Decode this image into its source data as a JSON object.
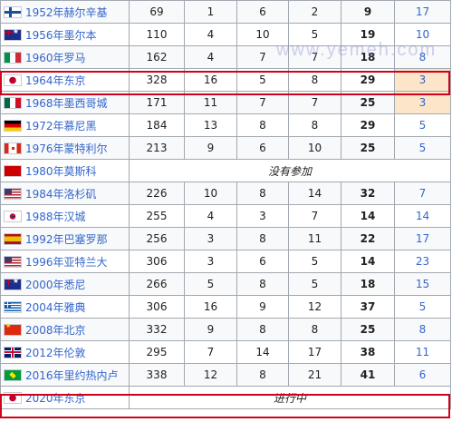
{
  "watermark": "www.yemeh.com",
  "rows": [
    {
      "flag": "fi-flag-icon",
      "name": "1952年赫尔辛基",
      "total_athletes": "69",
      "gold": "1",
      "silver": "6",
      "bronze": "2",
      "total": "9",
      "rank": "17"
    },
    {
      "flag": "au-flag-icon",
      "name": "1956年墨尔本",
      "total_athletes": "110",
      "gold": "4",
      "silver": "10",
      "bronze": "5",
      "total": "19",
      "rank": "10"
    },
    {
      "flag": "it-flag-icon",
      "name": "1960年罗马",
      "total_athletes": "162",
      "gold": "4",
      "silver": "7",
      "bronze": "7",
      "total": "18",
      "rank": "8"
    },
    {
      "flag": "jp-flag-icon",
      "name": "1964年东京",
      "total_athletes": "328",
      "gold": "16",
      "silver": "5",
      "bronze": "8",
      "total": "29",
      "rank": "3"
    },
    {
      "flag": "mx-flag-icon",
      "name": "1968年墨西哥城",
      "total_athletes": "171",
      "gold": "11",
      "silver": "7",
      "bronze": "7",
      "total": "25",
      "rank": "3"
    },
    {
      "flag": "de-flag-icon",
      "name": "1972年慕尼黑",
      "total_athletes": "184",
      "gold": "13",
      "silver": "8",
      "bronze": "8",
      "total": "29",
      "rank": "5"
    },
    {
      "flag": "ca-flag-icon",
      "name": "1976年蒙特利尔",
      "total_athletes": "213",
      "gold": "9",
      "silver": "6",
      "bronze": "10",
      "total": "25",
      "rank": "5"
    },
    {
      "flag": "su-flag-icon",
      "name": "1980年莫斯科",
      "note": "没有参加"
    },
    {
      "flag": "us-flag-icon",
      "name": "1984年洛杉矶",
      "total_athletes": "226",
      "gold": "10",
      "silver": "8",
      "bronze": "14",
      "total": "32",
      "rank": "7"
    },
    {
      "flag": "kr-flag-icon",
      "name": "1988年汉城",
      "total_athletes": "255",
      "gold": "4",
      "silver": "3",
      "bronze": "7",
      "total": "14",
      "rank": "14"
    },
    {
      "flag": "es-flag-icon",
      "name": "1992年巴塞罗那",
      "total_athletes": "256",
      "gold": "3",
      "silver": "8",
      "bronze": "11",
      "total": "22",
      "rank": "17"
    },
    {
      "flag": "us-flag-icon",
      "name": "1996年亚特兰大",
      "total_athletes": "306",
      "gold": "3",
      "silver": "6",
      "bronze": "5",
      "total": "14",
      "rank": "23"
    },
    {
      "flag": "au-flag-icon",
      "name": "2000年悉尼",
      "total_athletes": "266",
      "gold": "5",
      "silver": "8",
      "bronze": "5",
      "total": "18",
      "rank": "15"
    },
    {
      "flag": "gr-flag-icon",
      "name": "2004年雅典",
      "total_athletes": "306",
      "gold": "16",
      "silver": "9",
      "bronze": "12",
      "total": "37",
      "rank": "5"
    },
    {
      "flag": "cn-flag-icon",
      "name": "2008年北京",
      "total_athletes": "332",
      "gold": "9",
      "silver": "8",
      "bronze": "8",
      "total": "25",
      "rank": "8"
    },
    {
      "flag": "gb-flag-icon",
      "name": "2012年伦敦",
      "total_athletes": "295",
      "gold": "7",
      "silver": "14",
      "bronze": "17",
      "total": "38",
      "rank": "11"
    },
    {
      "flag": "br-flag-icon",
      "name": "2016年里约热内卢",
      "total_athletes": "338",
      "gold": "12",
      "silver": "8",
      "bronze": "21",
      "total": "41",
      "rank": "6"
    },
    {
      "flag": "jp-flag-icon",
      "name": "2020年东京",
      "note": "进行中"
    }
  ]
}
